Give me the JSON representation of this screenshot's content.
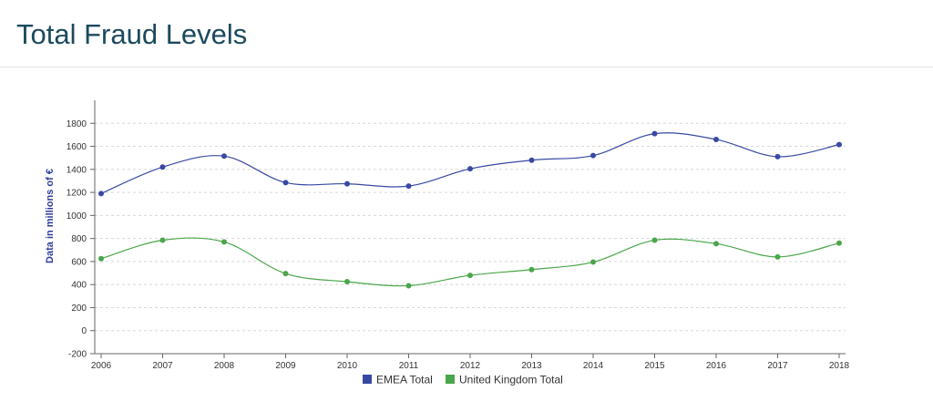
{
  "page": {
    "title": "Total Fraud Levels"
  },
  "chart_data": {
    "type": "line",
    "title": "",
    "xlabel": "",
    "ylabel": "Data in millions of €",
    "x": [
      "2006",
      "2007",
      "2008",
      "2009",
      "2010",
      "2011",
      "2012",
      "2013",
      "2014",
      "2015",
      "2016",
      "2017",
      "2018"
    ],
    "ylim": [
      -200,
      1800
    ],
    "yticks": [
      -200,
      0,
      200,
      400,
      600,
      800,
      1000,
      1200,
      1400,
      1600,
      1800
    ],
    "grid": true,
    "legend_position": "bottom-center",
    "series": [
      {
        "name": "EMEA Total",
        "color": "#3949a3",
        "values": [
          1190,
          1420,
          1515,
          1285,
          1275,
          1255,
          1405,
          1480,
          1520,
          1710,
          1660,
          1510,
          1615
        ]
      },
      {
        "name": "United Kingdom Total",
        "color": "#4aa64a",
        "values": [
          625,
          785,
          770,
          495,
          425,
          390,
          480,
          530,
          595,
          785,
          755,
          640,
          760
        ]
      }
    ]
  }
}
